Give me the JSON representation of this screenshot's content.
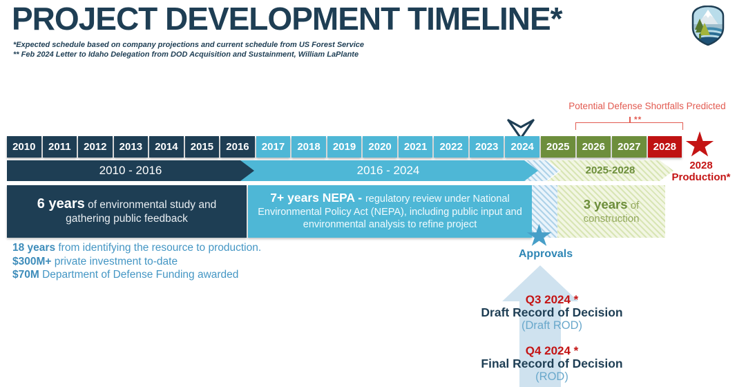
{
  "header": {
    "title": "PROJECT DEVELOPMENT TIMELINE*",
    "footnote_1": "*Expected schedule based on company projections and current schedule from US Forest Service",
    "footnote_2": "** Feb 2024 Letter to Idaho Delegation from DOD Acquisition and Sustainment, William LaPlante"
  },
  "annotation": {
    "label": "Potential Defense Shortfalls Predicted",
    "marker": "**"
  },
  "years": [
    {
      "label": "2010",
      "phase": "study"
    },
    {
      "label": "2011",
      "phase": "study"
    },
    {
      "label": "2012",
      "phase": "study"
    },
    {
      "label": "2013",
      "phase": "study"
    },
    {
      "label": "2014",
      "phase": "study"
    },
    {
      "label": "2015",
      "phase": "study"
    },
    {
      "label": "2016",
      "phase": "study"
    },
    {
      "label": "2017",
      "phase": "nepa"
    },
    {
      "label": "2018",
      "phase": "nepa"
    },
    {
      "label": "2019",
      "phase": "nepa"
    },
    {
      "label": "2020",
      "phase": "nepa"
    },
    {
      "label": "2021",
      "phase": "nepa"
    },
    {
      "label": "2022",
      "phase": "nepa"
    },
    {
      "label": "2023",
      "phase": "nepa"
    },
    {
      "label": "2024",
      "phase": "nepa"
    },
    {
      "label": "2025",
      "phase": "construction"
    },
    {
      "label": "2026",
      "phase": "construction"
    },
    {
      "label": "2027",
      "phase": "construction"
    },
    {
      "label": "2028",
      "phase": "production"
    }
  ],
  "phase_bars": {
    "study_range": "2010 - 2016",
    "nepa_range": "2016 - 2024",
    "construction_range": "2025-2028"
  },
  "phase_boxes": {
    "study_lead": "6 years",
    "study_text": " of environmental study and gathering public feedback",
    "nepa_lead": "7+ years NEPA - ",
    "nepa_text": "regulatory review under National Environmental Policy Act (NEPA), including public input and environmental analysis to refine project",
    "construction_lead": "3 years",
    "construction_text": " of construction"
  },
  "stats": [
    {
      "value": "18 years",
      "text": " from identifying the resource to production."
    },
    {
      "value": "$300M+",
      "text": " private investment to-date"
    },
    {
      "value": "$70M",
      "text": " Department of Defense Funding awarded"
    }
  ],
  "production": {
    "line1": "2028",
    "line2": "Production*"
  },
  "approvals": {
    "label": "Approvals"
  },
  "decisions": {
    "q3_date": "Q3 2024 *",
    "q3_title": "Draft Record of Decision",
    "q3_abbr": "(Draft ROD)",
    "q4_date": "Q4 2024 *",
    "q4_title": "Final Record of Decision",
    "q4_abbr": "(ROD)"
  },
  "colors": {
    "navy": "#1e3e54",
    "blue": "#4eb7d6",
    "olive": "#6d8e3c",
    "red": "#bf1212",
    "salmon": "#e25a50",
    "red-bright": "#c41414",
    "stat-blue": "#4496c4",
    "approval-blue": "#2e86b5",
    "approval-star": "#479fc8",
    "pale-arrow": "#cfe2ef",
    "rod-light": "#69a8cb",
    "green-text": "#6d8e3c"
  }
}
